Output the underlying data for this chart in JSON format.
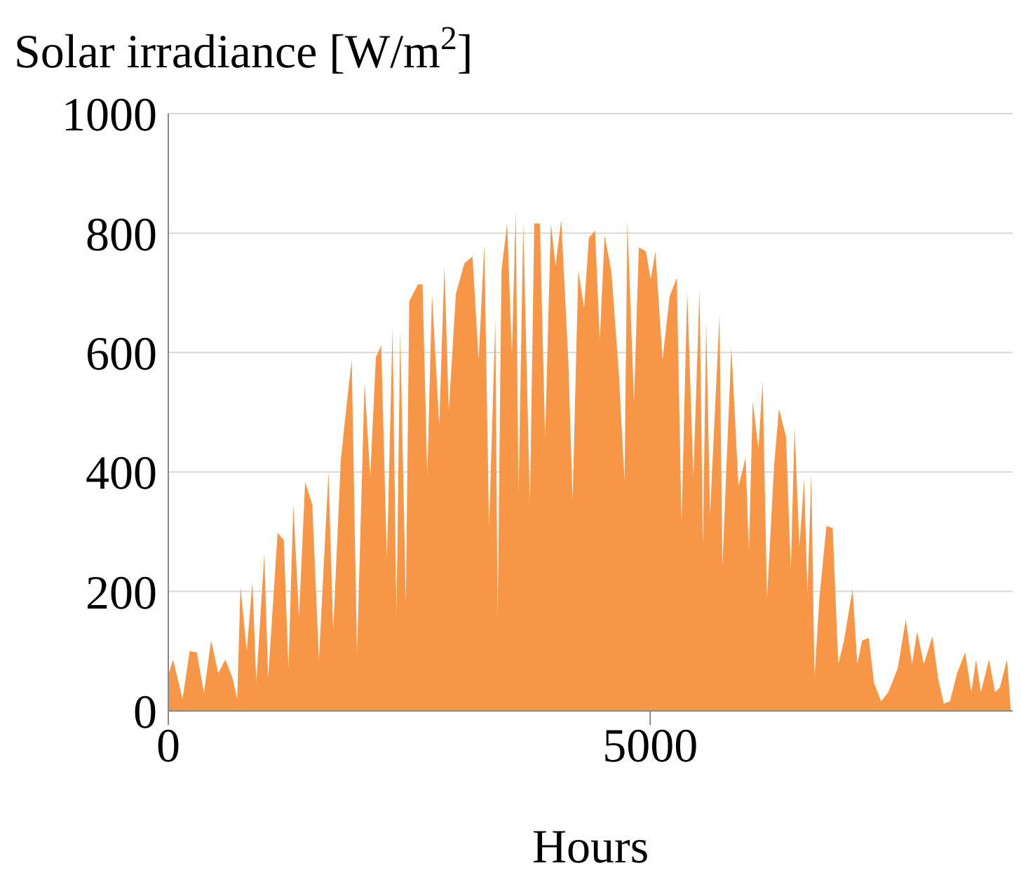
{
  "chart_data": {
    "type": "area",
    "ylabel": "Solar irradiance [W/m$^{2}$]",
    "xlabel": "Hours",
    "color": "#f79646",
    "x": [
      0,
      49,
      148,
      222,
      296,
      370,
      444,
      518,
      592,
      666,
      715,
      749,
      814,
      873,
      913,
      996,
      1036,
      1134,
      1198,
      1247,
      1297,
      1356,
      1420,
      1494,
      1563,
      1662,
      1711,
      1790,
      1849,
      1903,
      1958,
      2036,
      2095,
      2154,
      2209,
      2268,
      2327,
      2367,
      2406,
      2465,
      2500,
      2589,
      2638,
      2687,
      2736,
      2811,
      2865,
      2910,
      2984,
      3072,
      3156,
      3220,
      3279,
      3328,
      3393,
      3417,
      3457,
      3516,
      3565,
      3605,
      3634,
      3683,
      3752,
      3797,
      3856,
      3910,
      3969,
      4018,
      4077,
      4151,
      4195,
      4254,
      4314,
      4364,
      4428,
      4477,
      4527,
      4596,
      4675,
      4734,
      4763,
      4832,
      4882,
      4956,
      5005,
      5054,
      5128,
      5202,
      5276,
      5325,
      5384,
      5448,
      5512,
      5547,
      5581,
      5621,
      5719,
      5749,
      5842,
      5916,
      5990,
      6024,
      6064,
      6123,
      6167,
      6212,
      6286,
      6336,
      6409,
      6459,
      6498,
      6548,
      6597,
      6632,
      6671,
      6705,
      6755,
      6829,
      6893,
      6952,
      7011,
      7100,
      7149,
      7199,
      7268,
      7322,
      7396,
      7470,
      7568,
      7652,
      7716,
      7770,
      7839,
      7928,
      7987,
      8046,
      8110,
      8184,
      8268,
      8332,
      8381,
      8431,
      8515,
      8579,
      8628,
      8702,
      8742
    ],
    "values": [
      60,
      86,
      20,
      100,
      98,
      30,
      118,
      63,
      86,
      55,
      20,
      208,
      100,
      216,
      47,
      263,
      55,
      298,
      286,
      70,
      345,
      157,
      383,
      345,
      86,
      400,
      133,
      420,
      510,
      588,
      94,
      549,
      392,
      592,
      612,
      251,
      643,
      157,
      635,
      180,
      686,
      714,
      714,
      392,
      698,
      478,
      745,
      502,
      698,
      749,
      761,
      588,
      780,
      306,
      655,
      153,
      737,
      816,
      596,
      838,
      361,
      816,
      345,
      816,
      816,
      455,
      816,
      745,
      822,
      584,
      353,
      737,
      675,
      792,
      804,
      620,
      796,
      737,
      565,
      384,
      820,
      518,
      776,
      769,
      722,
      769,
      588,
      694,
      725,
      314,
      702,
      392,
      706,
      275,
      651,
      329,
      663,
      243,
      608,
      376,
      424,
      267,
      518,
      439,
      553,
      188,
      412,
      506,
      459,
      235,
      475,
      275,
      388,
      196,
      396,
      55,
      188,
      310,
      306,
      78,
      118,
      204,
      78,
      118,
      122,
      47,
      16,
      31,
      71,
      153,
      78,
      133,
      78,
      125,
      55,
      12,
      16,
      63,
      98,
      31,
      86,
      31,
      86,
      31,
      39,
      86,
      0
    ],
    "xlim": [
      0,
      8760
    ],
    "xticks": [
      0,
      5000
    ],
    "ylim": [
      0,
      1000
    ],
    "yticks": [
      0,
      200,
      400,
      600,
      800,
      1000
    ],
    "grid": "y"
  }
}
